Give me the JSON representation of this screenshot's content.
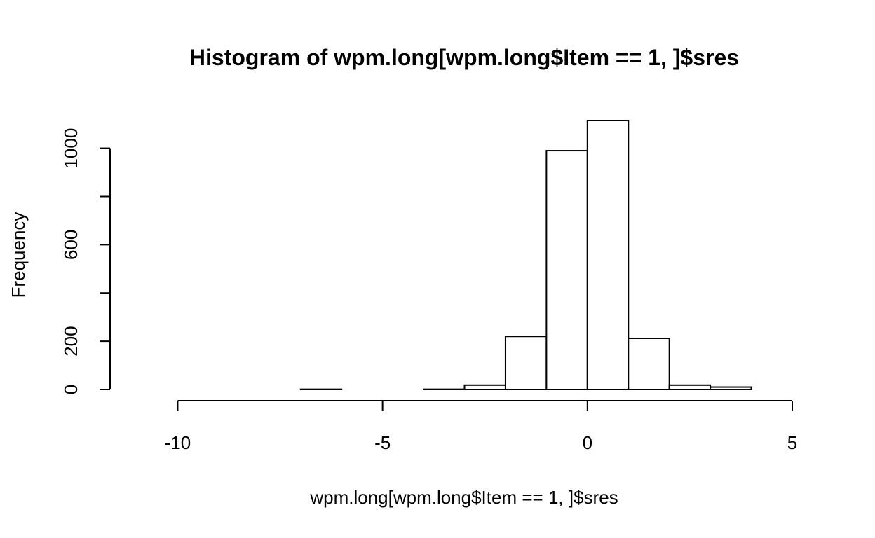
{
  "chart_data": {
    "type": "bar",
    "title": "Histogram of wpm.long[wpm.long$Item == 1, ]$sres",
    "xlabel": "wpm.long[wpm.long$Item == 1, ]$sres",
    "ylabel": "Frequency",
    "bins": [
      {
        "x0": -11,
        "x1": -10,
        "count": 0
      },
      {
        "x0": -10,
        "x1": -9,
        "count": 0
      },
      {
        "x0": -9,
        "x1": -8,
        "count": 0
      },
      {
        "x0": -8,
        "x1": -7,
        "count": 0
      },
      {
        "x0": -7,
        "x1": -6,
        "count": 1
      },
      {
        "x0": -6,
        "x1": -5,
        "count": 0
      },
      {
        "x0": -5,
        "x1": -4,
        "count": 0
      },
      {
        "x0": -4,
        "x1": -3,
        "count": 1
      },
      {
        "x0": -3,
        "x1": -2,
        "count": 18
      },
      {
        "x0": -2,
        "x1": -1,
        "count": 220
      },
      {
        "x0": -1,
        "x1": 0,
        "count": 990
      },
      {
        "x0": 0,
        "x1": 1,
        "count": 1115
      },
      {
        "x0": 1,
        "x1": 2,
        "count": 212
      },
      {
        "x0": 2,
        "x1": 3,
        "count": 18
      },
      {
        "x0": 3,
        "x1": 4,
        "count": 10
      },
      {
        "x0": 4,
        "x1": 5,
        "count": 0
      }
    ],
    "xlim": [
      -11,
      5
    ],
    "ylim": [
      0,
      1115
    ],
    "x_ticks": [
      -10,
      -5,
      0,
      5
    ],
    "x_tick_labels": [
      "-10",
      "-5",
      "0",
      "5"
    ],
    "y_ticks": [
      0,
      200,
      400,
      600,
      800,
      1000
    ],
    "y_tick_labels": [
      "0",
      "200",
      "",
      "600",
      "",
      "1000"
    ],
    "grid": false,
    "legend": "none"
  }
}
